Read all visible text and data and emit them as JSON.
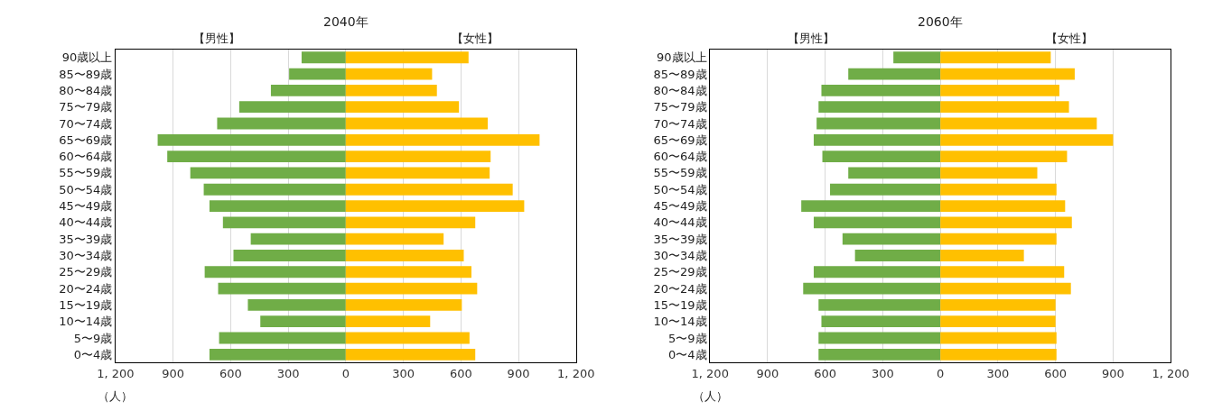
{
  "chart_data": [
    {
      "type": "bar",
      "orientation": "horizontal",
      "stacked": true,
      "title": "2040年",
      "categories": [
        "90歳以上",
        "85〜89歳",
        "80〜84歳",
        "75〜79歳",
        "70〜74歳",
        "65〜69歳",
        "60〜64歳",
        "55〜59歳",
        "50〜54歳",
        "45〜49歳",
        "40〜44歳",
        "35〜39歳",
        "30〜34歳",
        "25〜29歳",
        "20〜24歳",
        "15〜19歳",
        "10〜14歳",
        "5〜9歳",
        "0〜4歳"
      ],
      "series": [
        {
          "color": "#70ad47",
          "values": [
            -230,
            -295,
            -390,
            -555,
            -670,
            -980,
            -930,
            -810,
            -740,
            -710,
            -640,
            -495,
            -585,
            -735,
            -665,
            -510,
            -445,
            -660,
            -710
          ]
        },
        {
          "color": "#ffc000",
          "values": [
            640,
            450,
            475,
            590,
            740,
            1010,
            755,
            750,
            870,
            930,
            675,
            510,
            615,
            655,
            685,
            605,
            440,
            645,
            675
          ]
        }
      ],
      "xlim": [
        -1200,
        1200
      ],
      "xticks": [
        {
          "value": -1200,
          "label": "1, 200"
        },
        {
          "value": -900,
          "label": "900"
        },
        {
          "value": -600,
          "label": "600"
        },
        {
          "value": -300,
          "label": "300"
        },
        0,
        300,
        600,
        900,
        {
          "value": 1200,
          "label": "1, 200"
        }
      ],
      "grid": "x",
      "annotations": [
        "【男性】",
        "【女性】",
        "（人）"
      ]
    },
    {
      "type": "bar",
      "orientation": "horizontal",
      "stacked": true,
      "title": "2060年",
      "categories": [
        "90歳以上",
        "85〜89歳",
        "80〜84歳",
        "75〜79歳",
        "70〜74歳",
        "65〜69歳",
        "60〜64歳",
        "55〜59歳",
        "50〜54歳",
        "45〜49歳",
        "40〜44歳",
        "35〜39歳",
        "30〜34歳",
        "25〜29歳",
        "20〜24歳",
        "15〜19歳",
        "10〜14歳",
        "5〜9歳",
        "0〜4歳"
      ],
      "series": [
        {
          "color": "#70ad47",
          "values": [
            -245,
            -480,
            -620,
            -635,
            -645,
            -660,
            -615,
            -480,
            -575,
            -725,
            -660,
            -510,
            -445,
            -660,
            -715,
            -635,
            -620,
            -635,
            -635
          ]
        },
        {
          "color": "#ffc000",
          "values": [
            575,
            700,
            620,
            670,
            815,
            900,
            660,
            505,
            605,
            650,
            685,
            605,
            435,
            645,
            680,
            600,
            600,
            605,
            605
          ]
        }
      ],
      "xlim": [
        -1200,
        1200
      ],
      "xticks": [
        {
          "value": -1200,
          "label": "1, 200"
        },
        {
          "value": -900,
          "label": "900"
        },
        {
          "value": -600,
          "label": "600"
        },
        {
          "value": -300,
          "label": "300"
        },
        0,
        300,
        600,
        900,
        {
          "value": 1200,
          "label": "1, 200"
        }
      ],
      "grid": "x",
      "annotations": [
        "【男性】",
        "【女性】",
        "（人）"
      ]
    }
  ]
}
